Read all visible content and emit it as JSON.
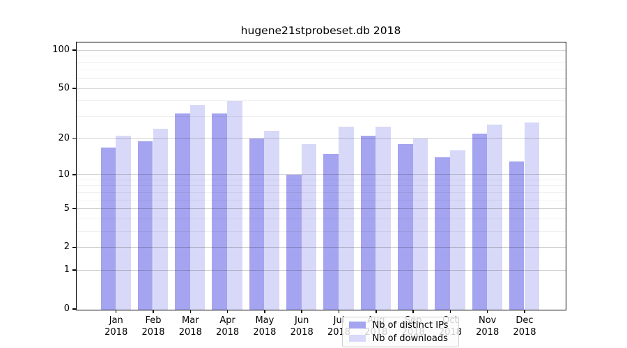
{
  "title": "hugene21stprobeset.db 2018",
  "chart_data": {
    "type": "bar",
    "scale": "log1p",
    "title": "hugene21stprobeset.db 2018",
    "categories": [
      "Jan",
      "Feb",
      "Mar",
      "Apr",
      "May",
      "Jun",
      "Jul",
      "Aug",
      "Sep",
      "Oct",
      "Nov",
      "Dec"
    ],
    "year": "2018",
    "series": [
      {
        "name": "Nb of distinct IPs",
        "color": "#a4a4f0",
        "values": [
          17,
          19,
          32,
          32,
          20,
          10,
          15,
          21,
          18,
          14,
          22,
          13
        ]
      },
      {
        "name": "Nb of downloads",
        "color": "#d8d8f8",
        "values": [
          21,
          24,
          37,
          40,
          23,
          18,
          25,
          25,
          20,
          16,
          26,
          27
        ]
      }
    ],
    "yticks": [
      100,
      50,
      20,
      10,
      5,
      2,
      1,
      0
    ],
    "minor_yticks": [
      3,
      4,
      6,
      7,
      8,
      9,
      30,
      40,
      60,
      70,
      80,
      90
    ],
    "ylim": [
      0,
      115
    ],
    "xlabel": "",
    "ylabel": "",
    "grid": true,
    "legend_position": "lower center"
  }
}
